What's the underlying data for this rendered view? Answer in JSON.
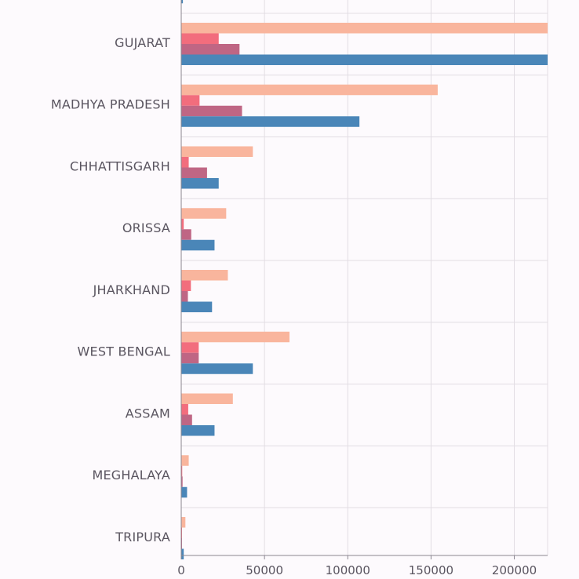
{
  "chart_data": {
    "type": "bar",
    "orientation": "horizontal",
    "categories": [
      "GUJARAT",
      "MADHYA PRADESH",
      "CHHATTISGARH",
      "ORISSA",
      "JHARKHAND",
      "WEST BENGAL",
      "ASSAM",
      "MEGHALAYA",
      "TRIPURA"
    ],
    "series": [
      {
        "values": [
          220000,
          154000,
          43000,
          27000,
          28000,
          65000,
          31000,
          4500,
          2500
        ],
        "color": "#f9b59d"
      },
      {
        "values": [
          22500,
          11000,
          4500,
          1500,
          5800,
          10500,
          4200,
          600,
          300
        ],
        "color": "#f26d7d"
      },
      {
        "values": [
          35000,
          36500,
          15500,
          6000,
          4000,
          10500,
          6500,
          800,
          400
        ],
        "color": "#bf6684"
      },
      {
        "values": [
          220000,
          107000,
          22500,
          20000,
          18500,
          43000,
          20000,
          3500,
          1500
        ],
        "color": "#4a86b8"
      }
    ],
    "xlim": [
      0,
      220000
    ],
    "xticks": [
      "0",
      "50000",
      "100000",
      "150000",
      "200000"
    ],
    "xtick_values": [
      0,
      50000,
      100000,
      150000,
      200000
    ],
    "grid": true,
    "partial_top_category_values": [
      0,
      0,
      0,
      1000
    ]
  }
}
